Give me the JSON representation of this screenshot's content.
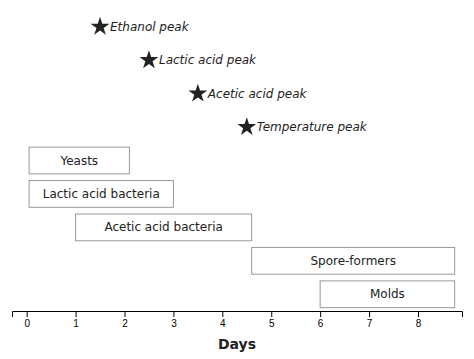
{
  "chart_data": {
    "type": "gantt",
    "xlabel": "Days",
    "xlim": [
      -0.3,
      8.9
    ],
    "xticks": [
      0,
      1,
      2,
      3,
      4,
      5,
      6,
      7,
      8
    ],
    "categories": [
      "Yeasts",
      "Lactic acid bacteria",
      "Acetic acid bacteria",
      "Spore-formers",
      "Molds"
    ],
    "start": [
      0.05,
      0.05,
      1.0,
      4.6,
      6.0
    ],
    "end": [
      2.1,
      3.0,
      4.6,
      8.75,
      8.75
    ],
    "color": "white",
    "annotations": [
      {
        "x": 1.5,
        "text": "Ethanol peak"
      },
      {
        "x": 2.5,
        "text": "Lactic acid peak"
      },
      {
        "x": 3.5,
        "text": "Acetic acid peak"
      },
      {
        "x": 4.5,
        "text": "Temperature peak"
      }
    ],
    "tick_labels": "x"
  }
}
